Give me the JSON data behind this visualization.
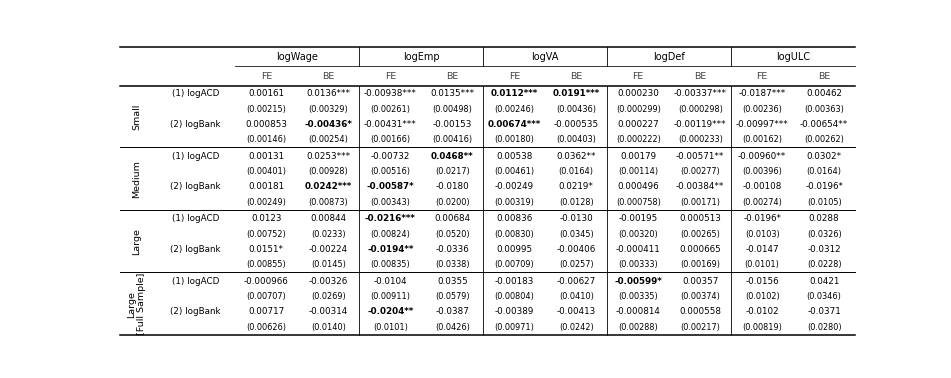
{
  "col_groups": [
    "logWage",
    "logEmp",
    "logVA",
    "logDef",
    "logULC"
  ],
  "row_groups": [
    "Small",
    "Medium",
    "Large",
    "Large\n[Full Sample]"
  ],
  "table_data": [
    [
      [
        "0.00161",
        "0.0136***",
        "-0.00938***",
        "0.0135***",
        "**0.0112***",
        "**0.0191***",
        "0.000230",
        "-0.00337***",
        "-0.0187***",
        "0.00462"
      ],
      [
        "(0.00215)",
        "(0.00329)",
        "(0.00261)",
        "(0.00498)",
        "(0.00246)",
        "(0.00436)",
        "(0.000299)",
        "(0.000298)",
        "(0.00236)",
        "(0.00363)"
      ],
      [
        "0.000853",
        "**-0.00436*",
        "-0.00431***",
        "-0.00153",
        "**0.00674***",
        "-0.000535",
        "0.000227",
        "-0.00119***",
        "-0.00997***",
        "-0.00654**"
      ],
      [
        "(0.00146)",
        "(0.00254)",
        "(0.00166)",
        "(0.00416)",
        "(0.00180)",
        "(0.00403)",
        "(0.000222)",
        "(0.000233)",
        "(0.00162)",
        "(0.00262)"
      ]
    ],
    [
      [
        "0.00131",
        "0.0253***",
        "-0.00732",
        "**0.0468**",
        "0.00538",
        "0.0362**",
        "0.00179",
        "-0.00571**",
        "-0.00960**",
        "0.0302*"
      ],
      [
        "(0.00401)",
        "(0.00928)",
        "(0.00516)",
        "(0.0217)",
        "(0.00461)",
        "(0.0164)",
        "(0.00114)",
        "(0.00277)",
        "(0.00396)",
        "(0.0164)"
      ],
      [
        "0.00181",
        "**0.0242***",
        "**-0.00587*",
        "-0.0180",
        "-0.00249",
        "0.0219*",
        "0.000496",
        "-0.00384**",
        "-0.00108",
        "-0.0196*"
      ],
      [
        "(0.00249)",
        "(0.00873)",
        "(0.00343)",
        "(0.0200)",
        "(0.00319)",
        "(0.0128)",
        "(0.000758)",
        "(0.00171)",
        "(0.00274)",
        "(0.0105)"
      ]
    ],
    [
      [
        "0.0123",
        "0.00844",
        "**-0.0216***",
        "0.00684",
        "0.00836",
        "-0.0130",
        "-0.00195",
        "0.000513",
        "-0.0196*",
        "0.0288"
      ],
      [
        "(0.00752)",
        "(0.0233)",
        "(0.00824)",
        "(0.0520)",
        "(0.00830)",
        "(0.0345)",
        "(0.00320)",
        "(0.00265)",
        "(0.0103)",
        "(0.0326)"
      ],
      [
        "0.0151*",
        "-0.00224",
        "**-0.0194**",
        "-0.0336",
        "0.00995",
        "-0.00406",
        "-0.000411",
        "0.000665",
        "-0.0147",
        "-0.0312"
      ],
      [
        "(0.00855)",
        "(0.0145)",
        "(0.00835)",
        "(0.0338)",
        "(0.00709)",
        "(0.0257)",
        "(0.00333)",
        "(0.00169)",
        "(0.0101)",
        "(0.0228)"
      ]
    ],
    [
      [
        "-0.000966",
        "-0.00326",
        "-0.0104",
        "0.0355",
        "-0.00183",
        "-0.00627",
        "**-0.00599*",
        "0.00357",
        "-0.0156",
        "0.0421"
      ],
      [
        "(0.00707)",
        "(0.0269)",
        "(0.00911)",
        "(0.0579)",
        "(0.00804)",
        "(0.0410)",
        "(0.00335)",
        "(0.00374)",
        "(0.0102)",
        "(0.0346)"
      ],
      [
        "0.00717",
        "-0.00314",
        "**-0.0204**",
        "-0.0387",
        "-0.00389",
        "-0.00413",
        "-0.000814",
        "0.000558",
        "-0.0102",
        "-0.0371"
      ],
      [
        "(0.00626)",
        "(0.0140)",
        "(0.0101)",
        "(0.0426)",
        "(0.00971)",
        "(0.0242)",
        "(0.00288)",
        "(0.00217)",
        "(0.00819)",
        "(0.0280)"
      ]
    ]
  ]
}
